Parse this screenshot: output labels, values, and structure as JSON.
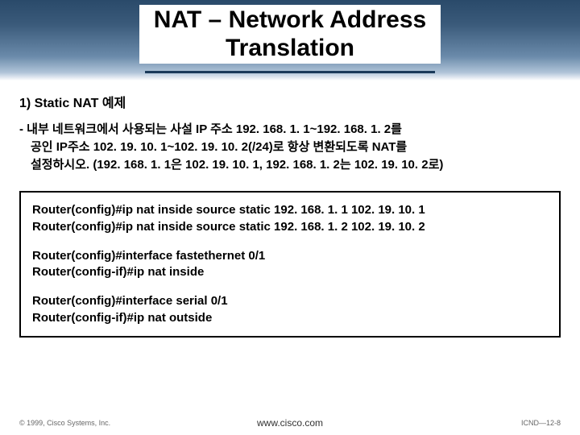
{
  "title_line1": "NAT – Network Address",
  "title_line2": "Translation",
  "subtitle": "1) Static NAT 예제",
  "desc_line1": "- 내부 네트워크에서 사용되는 사설 IP 주소 192. 168. 1. 1~192. 168. 1. 2를",
  "desc_line2": "공인 IP주소 102. 19. 10. 1~102. 19. 10. 2(/24)로 항상 변환되도록 NAT를",
  "desc_line3": "설정하시오.  (192. 168. 1. 1은 102. 19. 10. 1, 192. 168. 1. 2는 102. 19. 10. 2로)",
  "code": {
    "b1l1": "Router(config)#ip nat inside source static 192. 168. 1. 1 102. 19. 10. 1",
    "b1l2": "Router(config)#ip nat inside source static 192. 168. 1. 2 102. 19. 10. 2",
    "b2l1": "Router(config)#interface fastethernet 0/1",
    "b2l2": "Router(config-if)#ip nat inside",
    "b3l1": "Router(config)#interface serial 0/1",
    "b3l2": "Router(config-if)#ip nat outside"
  },
  "footer_left": "© 1999, Cisco Systems, Inc.",
  "footer_center": "www.cisco.com",
  "footer_right": "ICND—12-8",
  "colors": {
    "header_grad_top": "#2a4a6a",
    "header_grad_bottom": "#ffffff",
    "underline": "#1a3a5a",
    "text": "#000000",
    "border": "#000000",
    "footer_text": "#666666"
  }
}
